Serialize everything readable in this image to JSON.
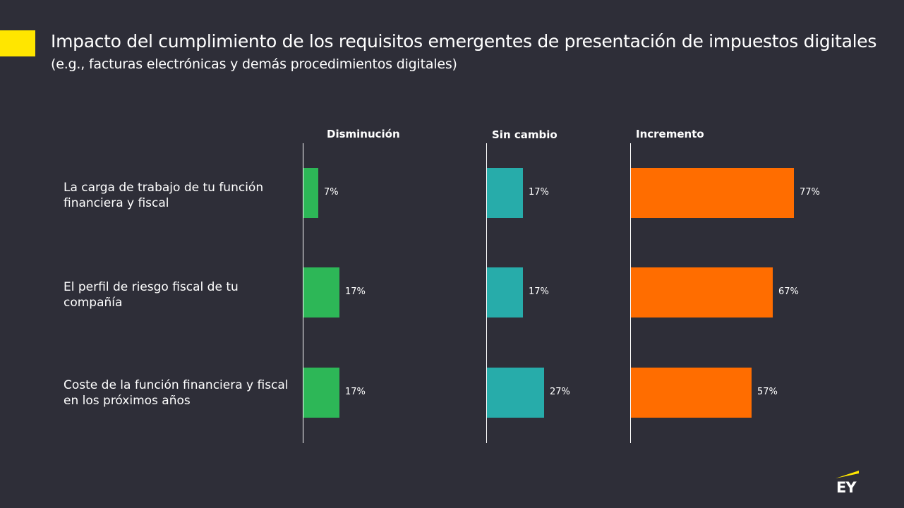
{
  "title": {
    "main": "Impacto del cumplimiento de los requisitos emergentes de presentación de impuestos digitales",
    "sub": "(e.g., facturas electrónicas y demás procedimientos digitales)"
  },
  "logo": {
    "text": "EY"
  },
  "colors": {
    "background": "#2e2e38",
    "accent": "#ffe600",
    "disminucion": "#2db757",
    "sin_cambio": "#27acaa",
    "incremento": "#ff6d00"
  },
  "chart_data": {
    "type": "bar",
    "orientation": "horizontal",
    "layout": "small-multiples",
    "title": "Impacto del cumplimiento de los requisitos emergentes de presentación de impuestos digitales (e.g., facturas electrónicas y demás procedimientos digitales)",
    "categories": [
      "La carga de trabajo de tu función financiera  y fiscal",
      "El perfil de riesgo fiscal de tu compañía",
      "Coste de la función  financiera  y fiscal en los próximos años"
    ],
    "series": [
      {
        "name": "Disminución",
        "color": "#2db757",
        "values": [
          7,
          17,
          17
        ],
        "labels": [
          "7%",
          "17%",
          "17%"
        ]
      },
      {
        "name": "Sin cambio",
        "color": "#27acaa",
        "values": [
          17,
          17,
          27
        ],
        "labels": [
          "17%",
          "17%",
          "27%"
        ]
      },
      {
        "name": "Incremento",
        "color": "#ff6d00",
        "values": [
          77,
          67,
          57
        ],
        "labels": [
          "77%",
          "67%",
          "57%"
        ]
      }
    ],
    "unit": "%",
    "xlim": [
      0,
      100
    ],
    "grid": false,
    "legend": "none"
  }
}
